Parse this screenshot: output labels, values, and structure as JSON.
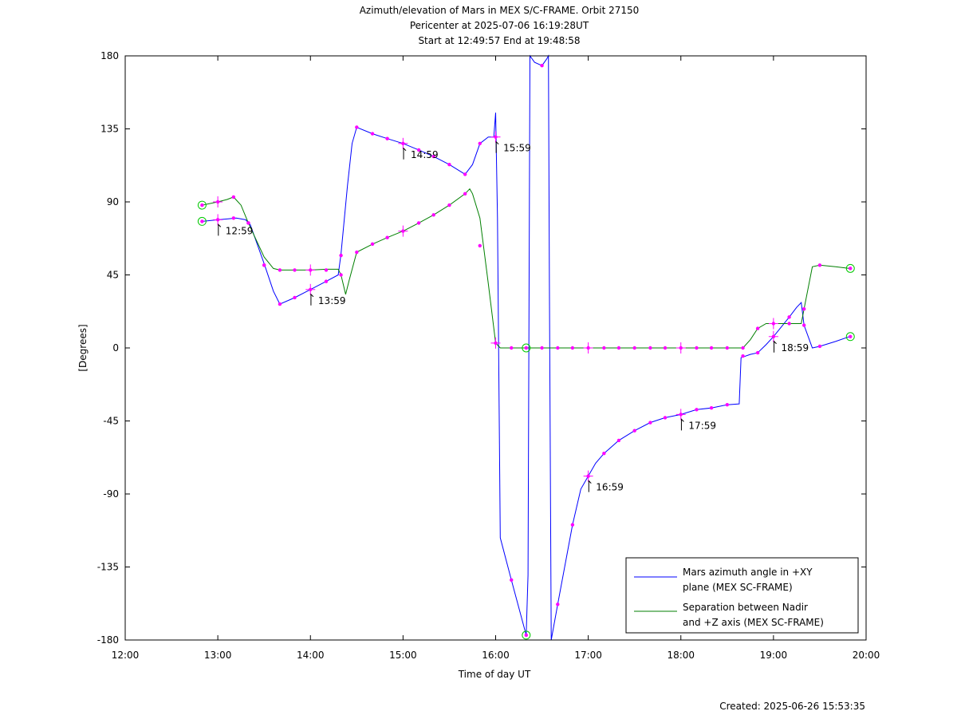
{
  "chart_data": {
    "type": "line",
    "title": [
      "Azimuth/elevation of Mars in MEX S/C-FRAME.  Orbit 27150",
      "Pericenter at 2025-07-06 16:19:28UT",
      "Start at 12:49:57 End at 19:48:58"
    ],
    "xlabel": "Time of day UT",
    "ylabel": "[Degrees]",
    "xlim": [
      12.0,
      20.0
    ],
    "ylim": [
      -180,
      180
    ],
    "x_ticks": [
      {
        "v": 12,
        "label": "12:00"
      },
      {
        "v": 13,
        "label": "13:00"
      },
      {
        "v": 14,
        "label": "14:00"
      },
      {
        "v": 15,
        "label": "15:00"
      },
      {
        "v": 16,
        "label": "16:00"
      },
      {
        "v": 17,
        "label": "17:00"
      },
      {
        "v": 18,
        "label": "18:00"
      },
      {
        "v": 19,
        "label": "19:00"
      },
      {
        "v": 20,
        "label": "20:00"
      }
    ],
    "y_ticks": [
      {
        "v": 180,
        "label": "180"
      },
      {
        "v": 135,
        "label": "135"
      },
      {
        "v": 90,
        "label": "90"
      },
      {
        "v": 45,
        "label": "45"
      },
      {
        "v": 0,
        "label": "0"
      },
      {
        "v": -45,
        "label": "-45"
      },
      {
        "v": -90,
        "label": "-90"
      },
      {
        "v": -135,
        "label": "-135"
      },
      {
        "v": -180,
        "label": "-180"
      }
    ],
    "grid": false,
    "legend_position": "bottom-right",
    "series": [
      {
        "name": "Mars azimuth angle in +XY plane (MEX SC-FRAME)",
        "legend_lines": [
          "Mars azimuth angle in +XY",
          "plane (MEX SC-FRAME)"
        ],
        "color": "#0000ff",
        "points": [
          [
            12.83,
            78
          ],
          [
            13.0,
            79
          ],
          [
            13.1,
            79.5
          ],
          [
            13.2,
            80
          ],
          [
            13.3,
            79
          ],
          [
            13.35,
            76
          ],
          [
            13.5,
            52
          ],
          [
            13.6,
            35
          ],
          [
            13.67,
            27
          ],
          [
            13.83,
            31
          ],
          [
            14.0,
            36
          ],
          [
            14.17,
            41
          ],
          [
            14.3,
            45
          ],
          [
            14.33,
            58
          ],
          [
            14.4,
            100
          ],
          [
            14.45,
            126
          ],
          [
            14.5,
            136
          ],
          [
            14.67,
            132
          ],
          [
            14.83,
            129
          ],
          [
            15.0,
            126
          ],
          [
            15.17,
            122
          ],
          [
            15.33,
            118
          ],
          [
            15.5,
            113
          ],
          [
            15.67,
            107
          ],
          [
            15.75,
            113
          ],
          [
            15.83,
            126
          ],
          [
            15.92,
            130
          ],
          [
            15.98,
            130
          ],
          [
            16.0,
            145
          ],
          [
            16.02,
            80
          ],
          [
            16.05,
            -117
          ],
          [
            16.17,
            -143
          ],
          [
            16.25,
            -160
          ],
          [
            16.33,
            -177
          ],
          [
            16.35,
            -140
          ],
          [
            16.37,
            180
          ],
          [
            16.42,
            176
          ],
          [
            16.5,
            174
          ],
          [
            16.55,
            178
          ],
          [
            16.57,
            180
          ],
          [
            16.58,
            40
          ],
          [
            16.6,
            -180
          ],
          [
            16.67,
            -158
          ],
          [
            16.83,
            -109
          ],
          [
            16.92,
            -87
          ],
          [
            17.0,
            -79
          ],
          [
            17.08,
            -71
          ],
          [
            17.17,
            -65
          ],
          [
            17.33,
            -57
          ],
          [
            17.5,
            -51
          ],
          [
            17.67,
            -46
          ],
          [
            17.83,
            -43
          ],
          [
            18.0,
            -41
          ],
          [
            18.17,
            -38
          ],
          [
            18.33,
            -37
          ],
          [
            18.5,
            -35
          ],
          [
            18.63,
            -34.5
          ],
          [
            18.65,
            -6
          ],
          [
            18.75,
            -4
          ],
          [
            18.83,
            -3
          ],
          [
            18.92,
            2
          ],
          [
            19.0,
            7
          ],
          [
            19.17,
            19
          ],
          [
            19.25,
            25
          ],
          [
            19.3,
            28
          ],
          [
            19.33,
            14
          ],
          [
            19.42,
            0
          ],
          [
            19.5,
            1
          ],
          [
            19.67,
            4
          ],
          [
            19.82,
            7
          ]
        ],
        "markers": [
          [
            12.83,
            78
          ],
          [
            13.0,
            79
          ],
          [
            13.17,
            80
          ],
          [
            13.33,
            77
          ],
          [
            13.5,
            51
          ],
          [
            13.67,
            27
          ],
          [
            13.83,
            31
          ],
          [
            14.0,
            36
          ],
          [
            14.17,
            41
          ],
          [
            14.33,
            57
          ],
          [
            14.5,
            136
          ],
          [
            14.67,
            132
          ],
          [
            14.83,
            129
          ],
          [
            15.0,
            126
          ],
          [
            15.17,
            122
          ],
          [
            15.33,
            118
          ],
          [
            15.5,
            113
          ],
          [
            15.67,
            107
          ],
          [
            15.83,
            126
          ],
          [
            16.0,
            130
          ],
          [
            16.17,
            -143
          ],
          [
            16.33,
            -177
          ],
          [
            16.5,
            174
          ],
          [
            16.67,
            -158
          ],
          [
            16.83,
            -109
          ],
          [
            17.0,
            -79
          ],
          [
            17.17,
            -65
          ],
          [
            17.33,
            -57
          ],
          [
            17.5,
            -51
          ],
          [
            17.67,
            -46
          ],
          [
            17.83,
            -43
          ],
          [
            18.0,
            -41
          ],
          [
            18.17,
            -38
          ],
          [
            18.33,
            -37
          ],
          [
            18.5,
            -35
          ],
          [
            18.67,
            -5
          ],
          [
            18.83,
            -3
          ],
          [
            19.0,
            7
          ],
          [
            19.17,
            19
          ],
          [
            19.33,
            14
          ],
          [
            19.5,
            1
          ],
          [
            19.83,
            7
          ]
        ],
        "hour_crosses": [
          [
            13.0,
            79
          ],
          [
            14.0,
            36
          ],
          [
            15.0,
            126
          ],
          [
            16.0,
            130
          ],
          [
            17.0,
            -79
          ],
          [
            18.0,
            -41
          ],
          [
            19.0,
            7
          ]
        ],
        "endpoints": [
          [
            12.83,
            78
          ],
          [
            16.33,
            -177
          ],
          [
            19.83,
            7
          ]
        ]
      },
      {
        "name": "Separation between Nadir and +Z axis (MEX SC-FRAME)",
        "legend_lines": [
          "Separation between Nadir",
          "and +Z axis (MEX SC-FRAME)"
        ],
        "color": "#007f00",
        "points": [
          [
            12.83,
            88
          ],
          [
            13.0,
            90
          ],
          [
            13.1,
            91.5
          ],
          [
            13.17,
            93
          ],
          [
            13.25,
            88
          ],
          [
            13.33,
            77
          ],
          [
            13.5,
            56
          ],
          [
            13.6,
            49
          ],
          [
            13.67,
            48
          ],
          [
            13.83,
            48
          ],
          [
            14.0,
            48
          ],
          [
            14.17,
            48.5
          ],
          [
            14.3,
            48.5
          ],
          [
            14.33,
            45
          ],
          [
            14.38,
            33
          ],
          [
            14.42,
            42
          ],
          [
            14.5,
            59
          ],
          [
            14.67,
            64
          ],
          [
            14.83,
            68
          ],
          [
            15.0,
            72
          ],
          [
            15.17,
            77
          ],
          [
            15.33,
            82
          ],
          [
            15.5,
            88
          ],
          [
            15.67,
            95
          ],
          [
            15.72,
            98
          ],
          [
            15.75,
            95
          ],
          [
            15.83,
            80
          ],
          [
            15.92,
            40
          ],
          [
            16.0,
            3
          ],
          [
            16.05,
            0
          ],
          [
            16.33,
            0
          ],
          [
            17.0,
            0
          ],
          [
            18.0,
            0
          ],
          [
            18.67,
            0
          ],
          [
            18.75,
            5
          ],
          [
            18.83,
            12
          ],
          [
            18.92,
            15
          ],
          [
            19.0,
            15
          ],
          [
            19.17,
            15
          ],
          [
            19.3,
            15
          ],
          [
            19.33,
            24
          ],
          [
            19.42,
            50
          ],
          [
            19.5,
            51
          ],
          [
            19.67,
            50
          ],
          [
            19.82,
            49
          ]
        ],
        "markers": [
          [
            12.83,
            88
          ],
          [
            13.0,
            90
          ],
          [
            13.17,
            93
          ],
          [
            13.33,
            77
          ],
          [
            13.5,
            51
          ],
          [
            13.67,
            48
          ],
          [
            13.83,
            48
          ],
          [
            14.0,
            48
          ],
          [
            14.17,
            48
          ],
          [
            14.33,
            45
          ],
          [
            14.5,
            59
          ],
          [
            14.67,
            64
          ],
          [
            14.83,
            68
          ],
          [
            15.0,
            72
          ],
          [
            15.17,
            77
          ],
          [
            15.33,
            82
          ],
          [
            15.5,
            88
          ],
          [
            15.67,
            95
          ],
          [
            15.83,
            63
          ],
          [
            16.0,
            3
          ],
          [
            16.17,
            0
          ],
          [
            16.33,
            0
          ],
          [
            16.5,
            0
          ],
          [
            16.67,
            0
          ],
          [
            16.83,
            0
          ],
          [
            17.0,
            0
          ],
          [
            17.17,
            0
          ],
          [
            17.33,
            0
          ],
          [
            17.5,
            0
          ],
          [
            17.67,
            0
          ],
          [
            17.83,
            0
          ],
          [
            18.0,
            0
          ],
          [
            18.17,
            0
          ],
          [
            18.33,
            0
          ],
          [
            18.5,
            0
          ],
          [
            18.67,
            0
          ],
          [
            18.83,
            12
          ],
          [
            19.0,
            15
          ],
          [
            19.17,
            15
          ],
          [
            19.33,
            24
          ],
          [
            19.5,
            51
          ],
          [
            19.83,
            49
          ]
        ],
        "hour_crosses": [
          [
            13.0,
            90
          ],
          [
            14.0,
            48
          ],
          [
            15.0,
            72
          ],
          [
            16.0,
            3
          ],
          [
            17.0,
            0
          ],
          [
            18.0,
            0
          ],
          [
            19.0,
            15
          ]
        ],
        "endpoints": [
          [
            12.83,
            88
          ],
          [
            16.33,
            0
          ],
          [
            19.83,
            49
          ]
        ]
      }
    ],
    "annotations": [
      {
        "x": 12.98,
        "y": 79,
        "text": "12:59"
      },
      {
        "x": 13.98,
        "y": 36,
        "text": "13:59"
      },
      {
        "x": 14.98,
        "y": 126,
        "text": "14:59"
      },
      {
        "x": 15.98,
        "y": 130,
        "text": "15:59"
      },
      {
        "x": 16.98,
        "y": -79,
        "text": "16:59"
      },
      {
        "x": 17.98,
        "y": -41,
        "text": "17:59"
      },
      {
        "x": 18.98,
        "y": 7,
        "text": "18:59"
      }
    ],
    "marker_color": "#ff00ff",
    "endpoint_marker_color": "#00c800",
    "footer": "Created: 2025-06-26 15:53:35"
  }
}
